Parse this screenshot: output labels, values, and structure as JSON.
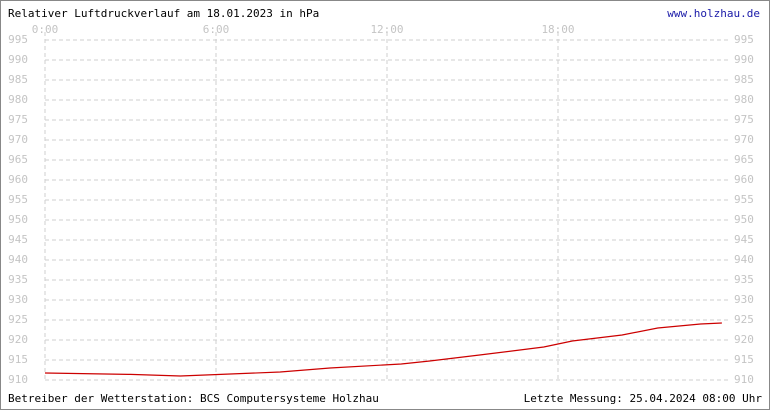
{
  "chart_data": {
    "type": "line",
    "title": "Relativer Luftdruckverlauf am 18.01.2023 in hPa",
    "link": "www.holzhau.de",
    "operator": "Betreiber der Wetterstation: BCS Computersysteme Holzhau",
    "last_measurement": "Letzte Messung: 25.04.2024 08:00 Uhr",
    "xlim": [
      0,
      24
    ],
    "xticks": [
      {
        "value": 0,
        "label": "0:00"
      },
      {
        "value": 6,
        "label": "6:00"
      },
      {
        "value": 12,
        "label": "12:00"
      },
      {
        "value": 18,
        "label": "18:00"
      }
    ],
    "ylim": [
      910,
      995
    ],
    "yticks": [
      910,
      915,
      920,
      925,
      930,
      935,
      940,
      945,
      950,
      955,
      960,
      965,
      970,
      975,
      980,
      985,
      990,
      995
    ],
    "grid": true,
    "series": [
      {
        "color": "#cc0000",
        "x": [
          0,
          3,
          4.75,
          6.5,
          8.25,
          10,
          12.5,
          13.5,
          15.25,
          17.5,
          18.5,
          20.25,
          21.5,
          23,
          23.75
        ],
        "values": [
          911.75,
          911.4,
          911,
          911.5,
          912,
          913,
          914,
          914.75,
          916.25,
          918.25,
          919.75,
          921.25,
          923,
          924,
          924.25
        ]
      }
    ]
  }
}
